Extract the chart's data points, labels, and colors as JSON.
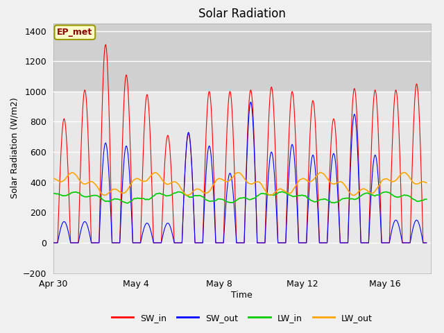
{
  "title": "Solar Radiation",
  "xlabel": "Time",
  "ylabel": "Solar Radiation (W/m2)",
  "ylim": [
    -200,
    1450
  ],
  "xlim_days": [
    0,
    18.2
  ],
  "yticks": [
    -200,
    0,
    200,
    400,
    600,
    800,
    1000,
    1200,
    1400
  ],
  "xtick_positions": [
    0,
    4,
    8,
    12,
    16
  ],
  "xtick_labels": [
    "Apr 30",
    "May 4",
    "May 8",
    "May 12",
    "May 16"
  ],
  "legend_labels": [
    "SW_in",
    "SW_out",
    "LW_in",
    "LW_out"
  ],
  "line_colors": [
    "#ff0000",
    "#0000ff",
    "#00cc00",
    "#ffa500"
  ],
  "annotation_text": "EP_met",
  "bg_color": "#f0f0f0",
  "plot_bg_color": "#e8e8e8",
  "title_fontsize": 12,
  "axis_fontsize": 9,
  "legend_fontsize": 9,
  "n_days": 18,
  "sw_in_peaks": [
    820,
    1010,
    1310,
    1110,
    980,
    710,
    720,
    1000,
    1000,
    1010,
    1030,
    1000,
    940,
    820,
    1020,
    1010,
    1010,
    1050
  ],
  "sw_out_peaks": [
    140,
    140,
    660,
    640,
    130,
    130,
    730,
    640,
    460,
    930,
    600,
    650,
    580,
    590,
    850,
    580,
    150,
    150
  ],
  "lw_in_base": 300,
  "lw_in_amp": 25,
  "lw_out_base": 385,
  "lw_out_amp": 55
}
